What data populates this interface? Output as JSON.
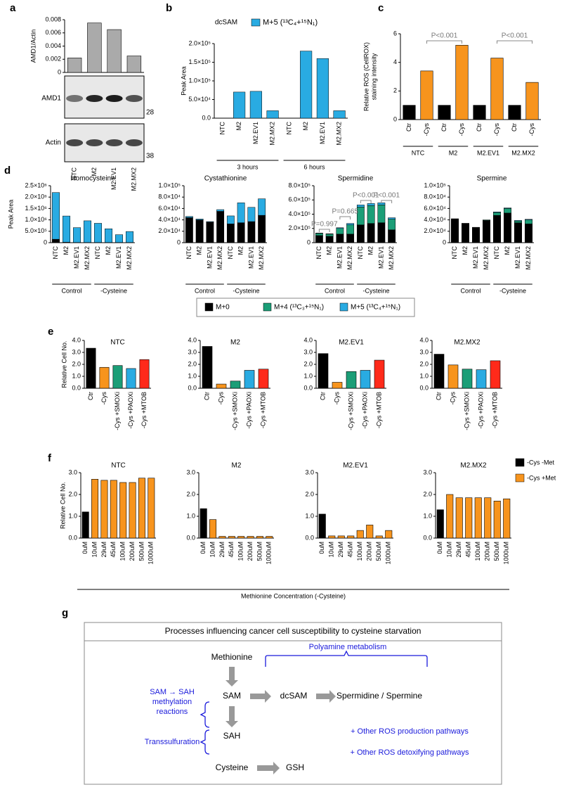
{
  "chart_data": [
    {
      "type": "bar",
      "panel": "a",
      "ylabel": "AMD1/Actin",
      "categories": [
        "NTC",
        "M2",
        "M2.EV1",
        "M2.MX2"
      ],
      "values": [
        0.0022,
        0.0075,
        0.0065,
        0.0025
      ],
      "color": "#aaaaaa",
      "ylim": [
        0,
        0.008
      ],
      "yticks": [
        0,
        0.002,
        0.004,
        0.006,
        0.008
      ]
    },
    {
      "type": "bar",
      "panel": "b",
      "title": "dcSAM",
      "ylabel": "Peak Area",
      "categories": [
        "NTC",
        "M2",
        "M2.EV1",
        "M2.MX2",
        "NTC",
        "M2",
        "M2.EV1",
        "M2.MX2"
      ],
      "group_labels": [
        "3 hours",
        "6 hours"
      ],
      "series": [
        {
          "name": "M+5 (¹³C₄+¹⁵N₁)",
          "color": "#29abe2",
          "values": [
            0,
            70000,
            72000,
            20000,
            0,
            180000,
            160000,
            20000
          ]
        }
      ],
      "ylim": [
        0,
        200000
      ],
      "yticks": [
        {
          "value": 0,
          "label": "0.0"
        },
        {
          "value": 50000,
          "label": "5.0×10⁴"
        },
        {
          "value": 100000,
          "label": "1.0×10⁵"
        },
        {
          "value": 150000,
          "label": "1.5×10⁵"
        },
        {
          "value": 200000,
          "label": "2.0×10⁵"
        }
      ]
    },
    {
      "type": "bar",
      "panel": "c",
      "ylabel": [
        "Relative ROS (CellROX)",
        "staining intensity"
      ],
      "categories": [
        "Ctr",
        "-Cys",
        "Ctr",
        "-Cys",
        "Ctr",
        "-Cys",
        "Ctr",
        "-Cys"
      ],
      "group_labels": [
        "NTC",
        "M2",
        "M2.EV1",
        "M2.MX2"
      ],
      "values": [
        1.0,
        3.4,
        1.0,
        5.2,
        1.0,
        4.3,
        1.0,
        2.6
      ],
      "colors": [
        "#000000",
        "#f7941d",
        "#000000",
        "#f7941d",
        "#000000",
        "#f7941d",
        "#000000",
        "#f7941d"
      ],
      "ylim": [
        0,
        6
      ],
      "yticks": [
        0,
        2,
        4,
        6
      ],
      "annotations": [
        "P<0.001",
        "P<0.001"
      ]
    },
    {
      "type": "bar",
      "stacked": true,
      "panel": "d",
      "title": "Homocysteine",
      "ylabel": "Peak Area",
      "categories": [
        "NTC",
        "M2",
        "M2.EV1",
        "M2.MX2",
        "NTC",
        "M2",
        "M2.EV1",
        "M2.MX2"
      ],
      "group_labels": [
        "Control",
        "-Cysteine"
      ],
      "series": [
        {
          "color": "#000000",
          "values": [
            150000,
            20000,
            10000,
            10000,
            10000,
            10000,
            10000,
            10000
          ]
        },
        {
          "color": "#1b9e77",
          "values": [
            0,
            0,
            0,
            0,
            0,
            0,
            0,
            0
          ]
        },
        {
          "color": "#29abe2",
          "values": [
            2050000,
            1150000,
            650000,
            950000,
            840000,
            600000,
            340000,
            480000
          ]
        }
      ],
      "ylim": [
        0,
        2500000
      ],
      "yticks": [
        0,
        {
          "value": 500000,
          "label": "5.0×10⁵"
        },
        {
          "value": 1000000,
          "label": "1.0×10⁶"
        },
        {
          "value": 1500000,
          "label": "1.5×10⁶"
        },
        {
          "value": 2000000,
          "label": "2.0×10⁶"
        },
        {
          "value": 2500000,
          "label": "2.5×10⁶"
        }
      ]
    },
    {
      "type": "bar",
      "stacked": true,
      "title": "Cystathionine",
      "categories": [
        "NTC",
        "M2",
        "M2.EV1",
        "M2.MX2",
        "NTC",
        "M2",
        "M2.EV1",
        "M2.MX2"
      ],
      "group_labels": [
        "Control",
        "-Cysteine"
      ],
      "series": [
        {
          "color": "#000000",
          "values": [
            44000,
            40000,
            36000,
            55000,
            33000,
            35000,
            37000,
            48000
          ]
        },
        {
          "color": "#1b9e77",
          "values": [
            0,
            0,
            0,
            0,
            0,
            0,
            0,
            0
          ]
        },
        {
          "color": "#29abe2",
          "values": [
            2000,
            1500,
            1000,
            3000,
            14000,
            35000,
            25000,
            29000
          ]
        }
      ],
      "ylim": [
        0,
        100000
      ],
      "yticks": [
        0,
        {
          "value": 20000,
          "label": "2.0×10⁴"
        },
        {
          "value": 40000,
          "label": "4.0×10⁴"
        },
        {
          "value": 60000,
          "label": "6.0×10⁴"
        },
        {
          "value": 80000,
          "label": "8.0×10⁴"
        },
        {
          "value": 100000,
          "label": "1.0×10⁵"
        }
      ]
    },
    {
      "type": "bar",
      "stacked": true,
      "title": "Spermidine",
      "categories": [
        "NTC",
        "M2",
        "M2.EV1",
        "M2.MX2",
        "NTC",
        "M2",
        "M2.EV1",
        "M2.MX2"
      ],
      "group_labels": [
        "Control",
        "-Cysteine"
      ],
      "series": [
        {
          "color": "#000000",
          "values": [
            100000,
            90000,
            120000,
            120000,
            250000,
            270000,
            280000,
            180000
          ]
        },
        {
          "color": "#1b9e77",
          "values": [
            30000,
            30000,
            80000,
            130000,
            250000,
            250000,
            250000,
            150000
          ]
        },
        {
          "color": "#29abe2",
          "values": [
            5000,
            5000,
            10000,
            20000,
            30000,
            30000,
            30000,
            20000
          ]
        }
      ],
      "ylim": [
        0,
        800000
      ],
      "yticks": [
        0,
        {
          "value": 200000,
          "label": "2.0×10⁵"
        },
        {
          "value": 400000,
          "label": "4.0×10⁵"
        },
        {
          "value": 600000,
          "label": "6.0×10⁵"
        },
        {
          "value": 800000,
          "label": "8.0×10⁵"
        }
      ],
      "annotations": [
        "P=0.997",
        "P=0.665",
        "P<0.001",
        "P<0.001"
      ]
    },
    {
      "type": "bar",
      "stacked": true,
      "title": "Spermine",
      "categories": [
        "NTC",
        "M2",
        "M2.EV1",
        "M2.MX2",
        "NTC",
        "M2",
        "M2.EV1",
        "M2.MX2"
      ],
      "group_labels": [
        "Control",
        "-Cysteine"
      ],
      "series": [
        {
          "color": "#000000",
          "values": [
            42000,
            34000,
            27000,
            39000,
            48000,
            52000,
            35000,
            33000
          ]
        },
        {
          "color": "#1b9e77",
          "values": [
            0,
            0,
            0,
            1000,
            5000,
            8000,
            3000,
            7000
          ]
        },
        {
          "color": "#29abe2",
          "values": [
            0,
            0,
            0,
            0,
            1000,
            1000,
            1000,
            1000
          ]
        }
      ],
      "ylim": [
        0,
        100000
      ],
      "yticks": [
        0,
        {
          "value": 20000,
          "label": "2.0×10⁴"
        },
        {
          "value": 40000,
          "label": "4.0×10⁴"
        },
        {
          "value": 60000,
          "label": "6.0×10⁴"
        },
        {
          "value": 80000,
          "label": "8.0×10⁴"
        },
        {
          "value": 100000,
          "label": "1.0×10⁵"
        }
      ]
    },
    {
      "type": "bar",
      "panel": "e",
      "title": "NTC",
      "ylabel": "Relative Cell No.",
      "categories": [
        "Ctr",
        "-Cys",
        "-Cys +SMOXi",
        "-Cys +PAOXi",
        "-Cys +MTOB"
      ],
      "values": [
        3.35,
        1.75,
        1.9,
        1.65,
        2.4
      ],
      "colors": [
        "#000000",
        "#f7941d",
        "#1b9e77",
        "#29abe2",
        "#ff2a1a"
      ],
      "ylim": [
        0,
        4
      ],
      "yticks": [
        {
          "value": 0,
          "label": "0.0"
        },
        {
          "value": 1,
          "label": "1.0"
        },
        {
          "value": 2,
          "label": "2.0"
        },
        {
          "value": 3,
          "label": "3.0"
        },
        {
          "value": 4,
          "label": "4.0"
        }
      ]
    },
    {
      "type": "bar",
      "title": "M2",
      "categories": [
        "Ctr",
        "-Cys",
        "-Cys +SMOXi",
        "-Cys +PAOXi",
        "-Cys +MTOB"
      ],
      "values": [
        3.5,
        0.35,
        0.6,
        1.5,
        1.6
      ],
      "colors": [
        "#000000",
        "#f7941d",
        "#1b9e77",
        "#29abe2",
        "#ff2a1a"
      ],
      "ylim": [
        0,
        4
      ],
      "yticks": [
        {
          "value": 0,
          "label": "0.0"
        },
        {
          "value": 1,
          "label": "1.0"
        },
        {
          "value": 2,
          "label": "2.0"
        },
        {
          "value": 3,
          "label": "3.0"
        },
        {
          "value": 4,
          "label": "4.0"
        }
      ]
    },
    {
      "type": "bar",
      "title": "M2.EV1",
      "categories": [
        "Ctr",
        "-Cys",
        "-Cys +SMOXi",
        "-Cys +PAOXi",
        "-Cys +MTOB"
      ],
      "values": [
        2.9,
        0.5,
        1.4,
        1.5,
        2.35
      ],
      "colors": [
        "#000000",
        "#f7941d",
        "#1b9e77",
        "#29abe2",
        "#ff2a1a"
      ],
      "ylim": [
        0,
        4
      ],
      "yticks": [
        {
          "value": 0,
          "label": "0.0"
        },
        {
          "value": 1,
          "label": "1.0"
        },
        {
          "value": 2,
          "label": "2.0"
        },
        {
          "value": 3,
          "label": "3.0"
        },
        {
          "value": 4,
          "label": "4.0"
        }
      ]
    },
    {
      "type": "bar",
      "title": "M2.MX2",
      "categories": [
        "Ctr",
        "-Cys",
        "-Cys +SMOXi",
        "-Cys +PAOXi",
        "-Cys +MTOB"
      ],
      "values": [
        2.85,
        1.95,
        1.6,
        1.55,
        2.3
      ],
      "colors": [
        "#000000",
        "#f7941d",
        "#1b9e77",
        "#29abe2",
        "#ff2a1a"
      ],
      "ylim": [
        0,
        4
      ],
      "yticks": [
        {
          "value": 0,
          "label": "0.0"
        },
        {
          "value": 1,
          "label": "1.0"
        },
        {
          "value": 2,
          "label": "2.0"
        },
        {
          "value": 3,
          "label": "3.0"
        },
        {
          "value": 4,
          "label": "4.0"
        }
      ]
    },
    {
      "type": "bar",
      "panel": "f",
      "title": "NTC",
      "ylabel": "Relative Cell No.",
      "xlabel": "Methionine Concentration (-Cysteine)",
      "categories": [
        "0uM",
        "10uM",
        "29uM",
        "45uM",
        "100uM",
        "200uM",
        "500uM",
        "1000uM"
      ],
      "values": [
        1.2,
        2.7,
        2.65,
        2.65,
        2.55,
        2.55,
        2.75,
        2.75
      ],
      "colors": [
        "#000000",
        "#f7941d",
        "#f7941d",
        "#f7941d",
        "#f7941d",
        "#f7941d",
        "#f7941d",
        "#f7941d"
      ],
      "ylim": [
        0,
        3
      ],
      "yticks": [
        {
          "value": 0,
          "label": "0.0"
        },
        {
          "value": 1,
          "label": "1.0"
        },
        {
          "value": 2,
          "label": "2.0"
        },
        {
          "value": 3,
          "label": "3.0"
        }
      ]
    },
    {
      "type": "bar",
      "title": "M2",
      "categories": [
        "0uM",
        "10uM",
        "29uM",
        "45uM",
        "100uM",
        "200uM",
        "500uM",
        "1000uM"
      ],
      "values": [
        1.35,
        0.85,
        0.08,
        0.08,
        0.08,
        0.08,
        0.08,
        0.08
      ],
      "colors": [
        "#000000",
        "#f7941d",
        "#f7941d",
        "#f7941d",
        "#f7941d",
        "#f7941d",
        "#f7941d",
        "#f7941d"
      ],
      "ylim": [
        0,
        3
      ],
      "yticks": [
        {
          "value": 0,
          "label": "0.0"
        },
        {
          "value": 1,
          "label": "1.0"
        },
        {
          "value": 2,
          "label": "2.0"
        },
        {
          "value": 3,
          "label": "3.0"
        }
      ]
    },
    {
      "type": "bar",
      "title": "M2.EV1",
      "categories": [
        "0uM",
        "10uM",
        "29uM",
        "45uM",
        "100uM",
        "200uM",
        "500uM",
        "1000uM"
      ],
      "values": [
        1.1,
        0.1,
        0.1,
        0.1,
        0.35,
        0.6,
        0.1,
        0.35
      ],
      "colors": [
        "#000000",
        "#f7941d",
        "#f7941d",
        "#f7941d",
        "#f7941d",
        "#f7941d",
        "#f7941d",
        "#f7941d"
      ],
      "ylim": [
        0,
        3
      ],
      "yticks": [
        {
          "value": 0,
          "label": "0.0"
        },
        {
          "value": 1,
          "label": "1.0"
        },
        {
          "value": 2,
          "label": "2.0"
        },
        {
          "value": 3,
          "label": "3.0"
        }
      ]
    },
    {
      "type": "bar",
      "title": "M2.MX2",
      "categories": [
        "0uM",
        "10uM",
        "29uM",
        "45uM",
        "100uM",
        "200uM",
        "500uM",
        "1000uM"
      ],
      "values": [
        1.3,
        2.0,
        1.85,
        1.85,
        1.85,
        1.85,
        1.7,
        1.8
      ],
      "colors": [
        "#000000",
        "#f7941d",
        "#f7941d",
        "#f7941d",
        "#f7941d",
        "#f7941d",
        "#f7941d",
        "#f7941d"
      ],
      "ylim": [
        0,
        3
      ],
      "yticks": [
        {
          "value": 0,
          "label": "0.0"
        },
        {
          "value": 1,
          "label": "1.0"
        },
        {
          "value": 2,
          "label": "2.0"
        },
        {
          "value": 3,
          "label": "3.0"
        }
      ]
    }
  ],
  "blot": {
    "rows": [
      {
        "label": "AMD1",
        "marker": 28
      },
      {
        "label": "Actin",
        "marker": 38
      }
    ]
  },
  "legend_d": [
    {
      "name": "M+0",
      "color": "#000000"
    },
    {
      "name": "M+4 (¹³C₃+¹⁵N₁)",
      "color": "#1b9e77"
    },
    {
      "name": "M+5 (¹³C₄+¹⁵N₁)",
      "color": "#29abe2"
    }
  ],
  "legend_f": [
    {
      "name": "-Cys -Met",
      "color": "#000000"
    },
    {
      "name": "-Cys +Met",
      "color": "#f7941d"
    }
  ],
  "diagram": {
    "panel": "g",
    "title": "Processes influencing cancer cell susceptibility to cysteine starvation",
    "nodes": [
      "Methionine",
      "SAM",
      "dcSAM",
      "Spermidine / Spermine",
      "SAH",
      "Cysteine",
      "GSH"
    ],
    "labels": {
      "polyamine": "Polyamine metabolism",
      "methylation": [
        "SAM → SAH",
        "methylation",
        "reactions"
      ],
      "transsulfuration": "Transsulfuration",
      "other": [
        "+ Other ROS production pathways",
        "+ Other ROS detoxifying pathways"
      ]
    }
  }
}
